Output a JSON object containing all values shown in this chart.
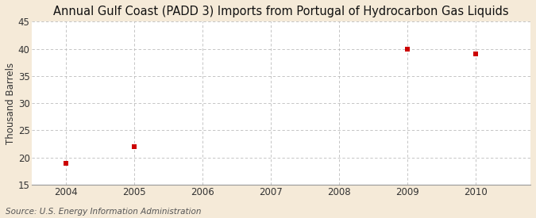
{
  "title": "Annual Gulf Coast (PADD 3) Imports from Portugal of Hydrocarbon Gas Liquids",
  "ylabel": "Thousand Barrels",
  "source": "Source: U.S. Energy Information Administration",
  "x_data": [
    2004,
    2005,
    2009,
    2010
  ],
  "y_data": [
    19,
    22,
    40,
    39
  ],
  "marker_color": "#cc0000",
  "marker_size": 4,
  "xlim": [
    2003.5,
    2010.8
  ],
  "ylim": [
    15,
    45
  ],
  "yticks": [
    15,
    20,
    25,
    30,
    35,
    40,
    45
  ],
  "xticks": [
    2004,
    2005,
    2006,
    2007,
    2008,
    2009,
    2010
  ],
  "outer_bg": "#f5ead8",
  "plot_bg": "#ffffff",
  "grid_color": "#bbbbbb",
  "title_fontsize": 10.5,
  "axis_fontsize": 8.5,
  "source_fontsize": 7.5,
  "tick_label_color": "#333333",
  "spine_color": "#999999"
}
